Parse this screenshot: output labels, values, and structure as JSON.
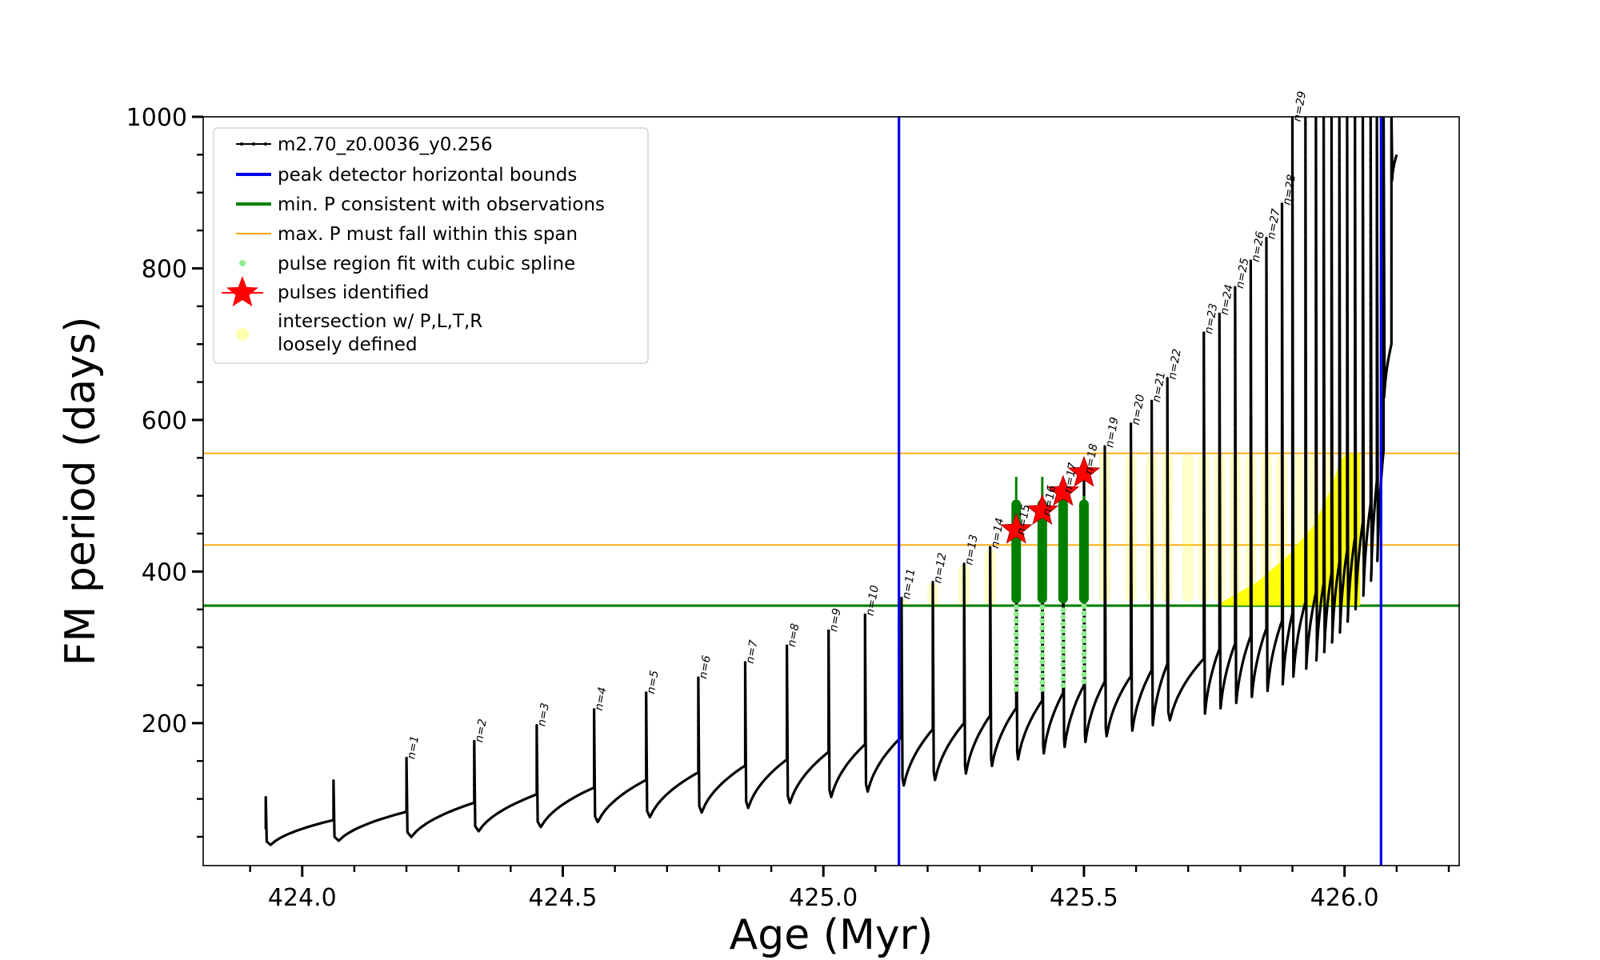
{
  "chart_data": {
    "type": "line",
    "xlabel": "Age (Myr)",
    "ylabel": "FM period (days)",
    "xlim": [
      423.81,
      426.22
    ],
    "ylim": [
      12,
      1000
    ],
    "xticks": [
      424.0,
      424.5,
      425.0,
      425.5,
      426.0
    ],
    "yticks": [
      200,
      400,
      600,
      800,
      1000
    ],
    "legend_position": "upper-left",
    "legend": [
      {
        "label": "m2.70_z0.0036_y0.256",
        "kind": "line-marker",
        "color": "#000000"
      },
      {
        "label": "peak detector horizontal bounds",
        "kind": "line",
        "color": "#0000ee"
      },
      {
        "label": "min. P consistent with observations",
        "kind": "line",
        "color": "#008000"
      },
      {
        "label": "max. P must fall within this span",
        "kind": "thin-line",
        "color": "#ffa500"
      },
      {
        "label": "pulse region fit with cubic spline",
        "kind": "dot",
        "color": "#90ee90"
      },
      {
        "label": "pulses identified",
        "kind": "star",
        "color": "#ff0000"
      },
      {
        "label": "intersection w/ P,L,T,R",
        "label2": "loosely defined",
        "kind": "dot",
        "color": "#ffffb0"
      }
    ],
    "colors": {
      "track": "#000000",
      "detector_bounds": "#0000ee",
      "min_period": "#008000",
      "max_span": "#ffa500",
      "spline": "#90ee90",
      "spline_fit": "#008000",
      "stars": "#ff0000",
      "intersection": "#ffff00"
    },
    "vertical_lines": [
      425.145,
      426.07
    ],
    "min_period_line": 355,
    "max_period_span": [
      435,
      556
    ],
    "baseline_start": {
      "age": 423.93,
      "period": 60
    },
    "pulses": [
      {
        "label": "",
        "age": 423.93,
        "peak": 102,
        "dip": 25,
        "base": 72
      },
      {
        "label": "",
        "age": 424.06,
        "peak": 124,
        "dip": 28,
        "base": 83
      },
      {
        "label": "n=1",
        "age": 424.2,
        "peak": 154,
        "dip": 30,
        "base": 95
      },
      {
        "label": "n=2",
        "age": 424.33,
        "peak": 176,
        "dip": 36,
        "base": 106
      },
      {
        "label": "n=3",
        "age": 424.45,
        "peak": 197,
        "dip": 40,
        "base": 115
      },
      {
        "label": "n=4",
        "age": 424.56,
        "peak": 218,
        "dip": 45,
        "base": 125
      },
      {
        "label": "n=5",
        "age": 424.66,
        "peak": 240,
        "dip": 50,
        "base": 135
      },
      {
        "label": "n=6",
        "age": 424.76,
        "peak": 260,
        "dip": 55,
        "base": 144
      },
      {
        "label": "n=7",
        "age": 424.85,
        "peak": 280,
        "dip": 60,
        "base": 152
      },
      {
        "label": "n=8",
        "age": 424.93,
        "peak": 302,
        "dip": 65,
        "base": 162
      },
      {
        "label": "n=9",
        "age": 425.01,
        "peak": 322,
        "dip": 72,
        "base": 172
      },
      {
        "label": "n=10",
        "age": 425.08,
        "peak": 343,
        "dip": 78,
        "base": 182
      },
      {
        "label": "n=11",
        "age": 425.15,
        "peak": 365,
        "dip": 85,
        "base": 192
      },
      {
        "label": "n=12",
        "age": 425.21,
        "peak": 386,
        "dip": 92,
        "base": 200
      },
      {
        "label": "n=13",
        "age": 425.27,
        "peak": 410,
        "dip": 100,
        "base": 210
      },
      {
        "label": "n=14",
        "age": 425.32,
        "peak": 432,
        "dip": 110,
        "base": 220
      },
      {
        "label": "n=15",
        "age": 425.37,
        "peak": 450,
        "dip": 118,
        "base": 230
      },
      {
        "label": "n=16",
        "age": 425.42,
        "peak": 475,
        "dip": 125,
        "base": 240
      },
      {
        "label": "n=17",
        "age": 425.46,
        "peak": 505,
        "dip": 133,
        "base": 250
      },
      {
        "label": "n=18",
        "age": 425.5,
        "peak": 530,
        "dip": 140,
        "base": 255
      },
      {
        "label": "n=19",
        "age": 425.54,
        "peak": 565,
        "dip": 148,
        "base": 262
      },
      {
        "label": "n=20",
        "age": 425.59,
        "peak": 595,
        "dip": 155,
        "base": 270
      },
      {
        "label": "n=21",
        "age": 425.63,
        "peak": 625,
        "dip": 162,
        "base": 278
      },
      {
        "label": "n=22",
        "age": 425.66,
        "peak": 655,
        "dip": 168,
        "base": 285
      },
      {
        "label": "n=23",
        "age": 425.73,
        "peak": 715,
        "dip": 175,
        "base": 298
      },
      {
        "label": "n=24",
        "age": 425.76,
        "peak": 740,
        "dip": 182,
        "base": 305
      },
      {
        "label": "n=25",
        "age": 425.79,
        "peak": 775,
        "dip": 188,
        "base": 315
      },
      {
        "label": "n=26",
        "age": 425.82,
        "peak": 810,
        "dip": 195,
        "base": 325
      },
      {
        "label": "n=27",
        "age": 425.85,
        "peak": 840,
        "dip": 202,
        "base": 335
      },
      {
        "label": "n=28",
        "age": 425.88,
        "peak": 885,
        "dip": 210,
        "base": 345
      },
      {
        "label": "n=29",
        "age": 425.9,
        "peak": 1000,
        "dip": 218,
        "base": 360
      },
      {
        "label": "",
        "age": 425.925,
        "peak": 1000,
        "dip": 228,
        "base": 372
      },
      {
        "label": "",
        "age": 425.945,
        "peak": 1000,
        "dip": 238,
        "base": 385
      },
      {
        "label": "",
        "age": 425.96,
        "peak": 1000,
        "dip": 248,
        "base": 398
      },
      {
        "label": "",
        "age": 425.975,
        "peak": 1000,
        "dip": 260,
        "base": 412
      },
      {
        "label": "",
        "age": 425.99,
        "peak": 1000,
        "dip": 272,
        "base": 428
      },
      {
        "label": "",
        "age": 426.005,
        "peak": 1000,
        "dip": 285,
        "base": 445
      },
      {
        "label": "",
        "age": 426.02,
        "peak": 1000,
        "dip": 300,
        "base": 465
      },
      {
        "label": "",
        "age": 426.035,
        "peak": 1000,
        "dip": 315,
        "base": 490
      },
      {
        "label": "",
        "age": 426.05,
        "peak": 1000,
        "dip": 330,
        "base": 520
      },
      {
        "label": "",
        "age": 426.062,
        "peak": 1000,
        "dip": 350,
        "base": 560
      },
      {
        "label": "",
        "age": 426.075,
        "peak": 1000,
        "dip": 600,
        "base": 700
      },
      {
        "label": "",
        "age": 426.09,
        "peak": 1000,
        "dip": 900,
        "base": 950
      }
    ],
    "stars": [
      {
        "age": 425.37,
        "period": 455
      },
      {
        "age": 425.42,
        "period": 480
      },
      {
        "age": 425.46,
        "period": 505
      },
      {
        "age": 425.5,
        "period": 530
      }
    ],
    "spline_columns": [
      {
        "age": 425.37,
        "low": 245,
        "fit_low": 358,
        "fit_high": 495,
        "peak": 525
      },
      {
        "age": 425.42,
        "low": 245,
        "fit_low": 358,
        "fit_high": 495,
        "peak": 525
      },
      {
        "age": 425.46,
        "low": 250,
        "fit_low": 358,
        "fit_high": 495,
        "peak": 520
      },
      {
        "age": 425.5,
        "low": 255,
        "fit_low": 358,
        "fit_high": 495,
        "peak": 500
      }
    ],
    "yellow_columns": [
      {
        "age": 425.15,
        "low": 355,
        "high": 365
      },
      {
        "age": 425.21,
        "low": 355,
        "high": 385
      },
      {
        "age": 425.27,
        "low": 355,
        "high": 410
      },
      {
        "age": 425.32,
        "low": 355,
        "high": 430
      },
      {
        "age": 425.54,
        "low": 360,
        "high": 555
      },
      {
        "age": 425.59,
        "low": 360,
        "high": 555
      },
      {
        "age": 425.63,
        "low": 360,
        "high": 555
      },
      {
        "age": 425.66,
        "low": 360,
        "high": 555
      },
      {
        "age": 425.7,
        "low": 360,
        "high": 555
      },
      {
        "age": 425.73,
        "low": 360,
        "high": 555
      },
      {
        "age": 425.76,
        "low": 360,
        "high": 555
      },
      {
        "age": 425.79,
        "low": 355,
        "high": 555
      },
      {
        "age": 425.82,
        "low": 355,
        "high": 555
      },
      {
        "age": 425.85,
        "low": 355,
        "high": 555
      },
      {
        "age": 425.88,
        "low": 355,
        "high": 555
      },
      {
        "age": 425.91,
        "low": 355,
        "high": 555
      },
      {
        "age": 425.94,
        "low": 355,
        "high": 555
      },
      {
        "age": 425.97,
        "low": 355,
        "high": 555
      },
      {
        "age": 426.0,
        "low": 380,
        "high": 555
      },
      {
        "age": 426.03,
        "low": 420,
        "high": 555
      }
    ],
    "yellow_wedge": [
      [
        425.76,
        358
      ],
      [
        425.83,
        385
      ],
      [
        425.89,
        420
      ],
      [
        425.94,
        460
      ],
      [
        425.975,
        510
      ],
      [
        425.99,
        545
      ],
      [
        426.005,
        556
      ],
      [
        426.03,
        556
      ],
      [
        426.03,
        355
      ],
      [
        425.76,
        355
      ]
    ]
  }
}
